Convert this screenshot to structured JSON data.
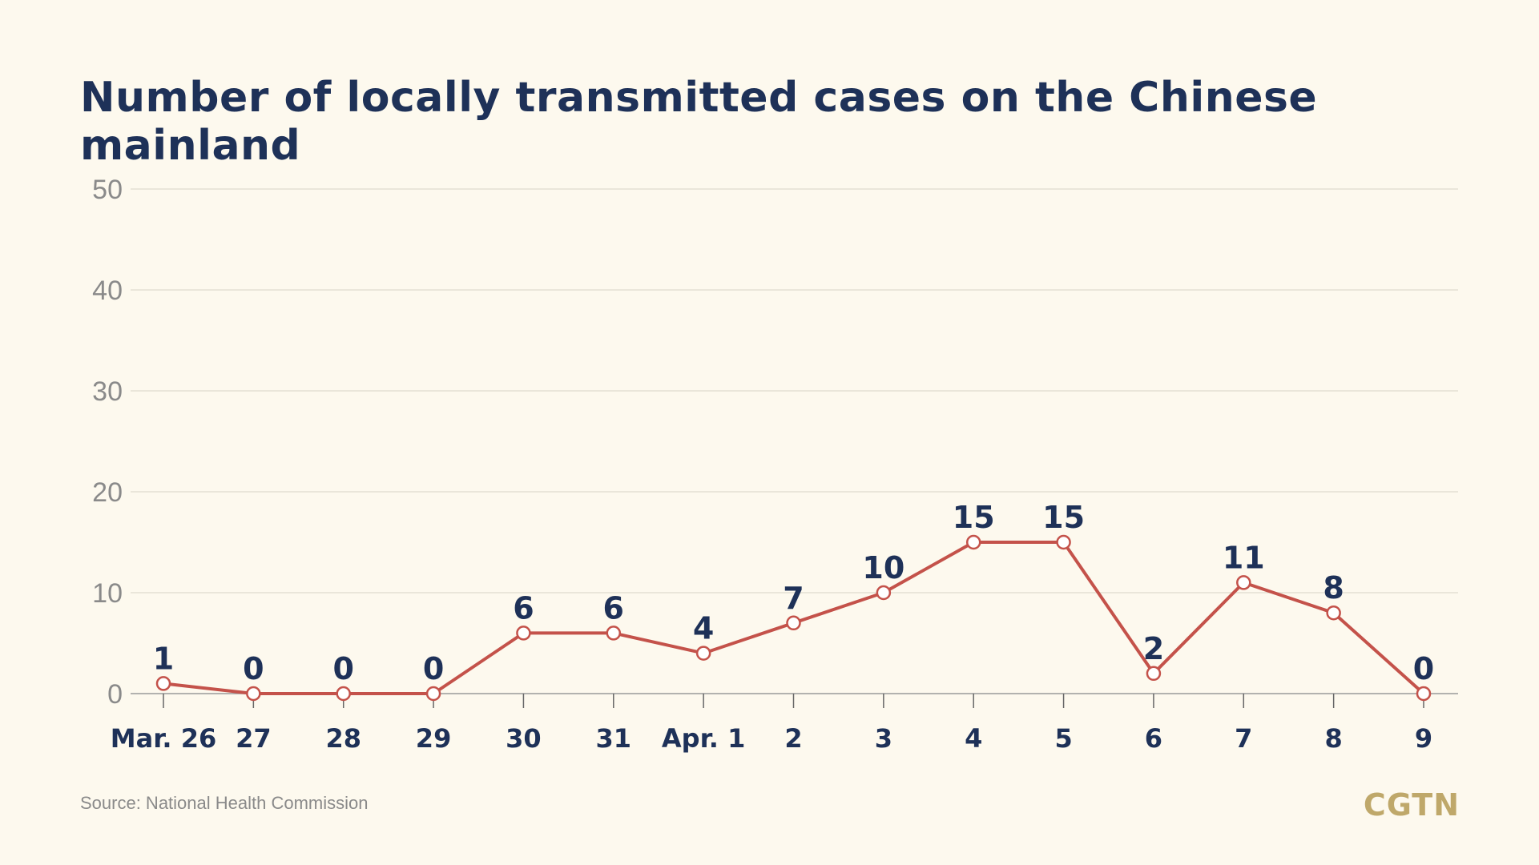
{
  "header": {
    "title": "Number of locally transmitted cases on the Chinese mainland"
  },
  "footer": {
    "source": "Source: National Health Commission",
    "logo": "CGTN"
  },
  "colors": {
    "background": "#fdf9ee",
    "title": "#1e3158",
    "line": "#c4524a",
    "marker_fill": "#ffffff",
    "data_label": "#1e3158",
    "y_tick_label": "#8a8a8a",
    "grid": "#e4e0d4",
    "logo": "#bfa86a"
  },
  "chart_data": {
    "type": "line",
    "title": "Number of locally transmitted cases on the Chinese mainland",
    "categories": [
      "Mar. 26",
      "27",
      "28",
      "29",
      "30",
      "31",
      "Apr. 1",
      "2",
      "3",
      "4",
      "5",
      "6",
      "7",
      "8",
      "9"
    ],
    "series": [
      {
        "values": [
          1,
          0,
          0,
          0,
          6,
          6,
          4,
          7,
          10,
          15,
          15,
          2,
          11,
          8,
          0
        ]
      }
    ],
    "data_labels": [
      "1",
      "0",
      "0",
      "0",
      "6",
      "6",
      "4",
      "7",
      "10",
      "15",
      "15",
      "2",
      "11",
      "8",
      "0"
    ],
    "y_ticks": [
      0,
      10,
      20,
      30,
      40,
      50
    ],
    "y_tick_labels": [
      "0",
      "10",
      "20",
      "30",
      "40",
      "50"
    ],
    "xlabel": "",
    "ylabel": "",
    "ylim": [
      0,
      50
    ],
    "grid": true,
    "legend": "none"
  }
}
